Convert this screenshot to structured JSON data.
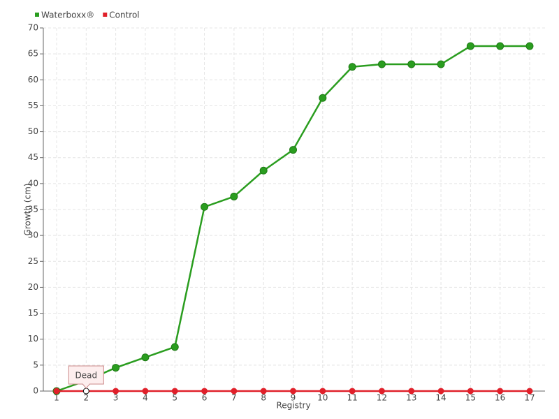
{
  "chart_data": {
    "type": "line",
    "x_label": "Registry",
    "y_label": "Growth (cm)",
    "categories": [
      "1",
      "2",
      "3",
      "4",
      "5",
      "6",
      "7",
      "8",
      "9",
      "10",
      "11",
      "12",
      "13",
      "14",
      "15",
      "16",
      "17"
    ],
    "series": [
      {
        "name": "Waterboxx®",
        "color": "#2a9d1f",
        "values": [
          0,
          2,
          4.5,
          6.5,
          8.5,
          35.5,
          37.5,
          42.5,
          46.5,
          56.5,
          62.5,
          63,
          63,
          63,
          66.5,
          66.5,
          66.5
        ]
      },
      {
        "name": "Control",
        "color": "#e0202a",
        "values": [
          0,
          0,
          0,
          0,
          0,
          0,
          0,
          0,
          0,
          0,
          0,
          0,
          0,
          0,
          0,
          0,
          0
        ]
      }
    ],
    "annotations": [
      {
        "text": "Dead",
        "x": "2"
      }
    ],
    "ylim": [
      0,
      70
    ],
    "yticks": [
      0,
      5,
      10,
      15,
      20,
      25,
      30,
      35,
      40,
      45,
      50,
      55,
      60,
      65,
      70
    ],
    "grid": true,
    "legend": "top-left"
  }
}
